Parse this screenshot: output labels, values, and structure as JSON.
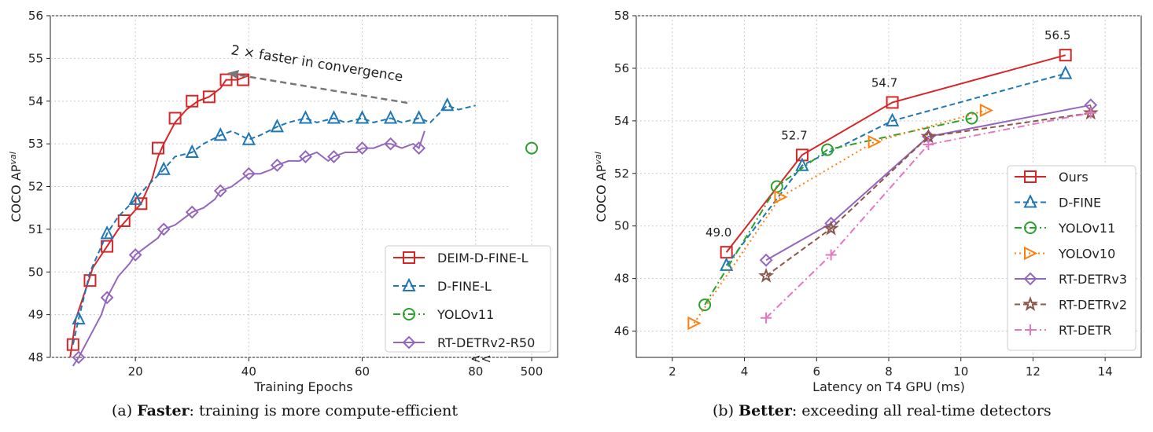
{
  "chart_data": [
    {
      "type": "line",
      "xlabel": "Training Epochs",
      "ylabel": "COCO AP",
      "ylabel_sup": "val",
      "ylim": [
        48,
        56
      ],
      "xlim": [
        5,
        86
      ],
      "yticks": [
        48,
        49,
        50,
        51,
        52,
        53,
        54,
        55,
        56
      ],
      "xticks": [
        20,
        40,
        60,
        80
      ],
      "extra_xtick": {
        "label": "500",
        "y": 52.9
      },
      "break_marker": "<<",
      "annotation": "2 ×  faster in convergence",
      "legend_position": "lower-right",
      "series": [
        {
          "name": "DEIM-D-FINE-L",
          "color": "#d62728",
          "marker": "square",
          "dash": "solid",
          "x": [
            9,
            12,
            15,
            18,
            21,
            24,
            27,
            30,
            33,
            36,
            39
          ],
          "y": [
            48.3,
            49.8,
            50.6,
            51.2,
            51.6,
            52.9,
            53.6,
            54.0,
            54.1,
            54.5,
            54.5
          ],
          "line_x": [
            8.5,
            9.5,
            11,
            12.5,
            14,
            15.5,
            17,
            19,
            21,
            23,
            24,
            25,
            27,
            29,
            31,
            33,
            35,
            36,
            38,
            40
          ],
          "line_y": [
            48.0,
            48.9,
            49.5,
            50.1,
            50.4,
            50.7,
            51.0,
            51.3,
            51.6,
            52.2,
            52.7,
            53.0,
            53.5,
            53.8,
            54.0,
            54.1,
            54.3,
            54.5,
            54.5,
            54.6
          ]
        },
        {
          "name": "D-FINE-L",
          "color": "#1f77b4",
          "marker": "triangle",
          "dash": "dashed",
          "x": [
            10,
            15,
            20,
            25,
            30,
            35,
            40,
            45,
            50,
            55,
            60,
            65,
            70,
            75
          ],
          "y": [
            48.9,
            50.9,
            51.7,
            52.4,
            52.8,
            53.2,
            53.1,
            53.4,
            53.6,
            53.6,
            53.6,
            53.6,
            53.6,
            53.9
          ],
          "line_x": [
            9,
            10,
            12,
            15,
            17,
            20,
            22,
            25,
            27,
            30,
            32,
            35,
            37,
            40,
            42,
            45,
            47,
            50,
            52,
            55,
            57,
            60,
            62,
            65,
            67,
            70,
            72,
            75,
            77,
            80
          ],
          "line_y": [
            48.3,
            48.9,
            50.0,
            50.9,
            51.3,
            51.7,
            52.0,
            52.4,
            52.7,
            52.8,
            53.0,
            53.2,
            53.3,
            53.1,
            53.2,
            53.4,
            53.5,
            53.6,
            53.5,
            53.6,
            53.5,
            53.6,
            53.5,
            53.6,
            53.5,
            53.6,
            53.5,
            53.9,
            53.8,
            53.9
          ]
        },
        {
          "name": "YOLOv11",
          "color": "#2ca02c",
          "marker": "circle",
          "dash": "dashdot",
          "x": [],
          "y": [],
          "line_x": [],
          "line_y": []
        },
        {
          "name": "RT-DETRv2-R50",
          "color": "#9467bd",
          "marker": "diamond",
          "dash": "solid",
          "x": [
            10,
            15,
            20,
            25,
            30,
            35,
            40,
            45,
            50,
            55,
            60,
            65,
            70
          ],
          "y": [
            48.0,
            49.4,
            50.4,
            51.0,
            51.4,
            51.9,
            52.3,
            52.5,
            52.7,
            52.7,
            52.9,
            53.0,
            52.9
          ],
          "line_x": [
            9,
            10,
            12,
            14,
            15,
            17,
            19,
            20,
            22,
            24,
            25,
            27,
            29,
            30,
            32,
            34,
            35,
            37,
            39,
            40,
            42,
            44,
            45,
            47,
            49,
            50,
            52,
            54,
            55,
            57,
            59,
            60,
            62,
            64,
            65,
            67,
            69,
            70,
            71
          ],
          "line_y": [
            47.8,
            48.0,
            48.5,
            49.0,
            49.4,
            49.9,
            50.2,
            50.4,
            50.6,
            50.8,
            51.0,
            51.1,
            51.3,
            51.4,
            51.5,
            51.7,
            51.9,
            52.0,
            52.2,
            52.3,
            52.3,
            52.4,
            52.5,
            52.6,
            52.6,
            52.7,
            52.8,
            52.6,
            52.7,
            52.8,
            52.8,
            52.9,
            52.9,
            53.0,
            53.0,
            52.9,
            53.0,
            52.9,
            53.3
          ]
        }
      ]
    },
    {
      "type": "line",
      "xlabel": "Latency on T4 GPU (ms)",
      "ylabel": "COCO AP",
      "ylabel_sup": "val",
      "xlim": [
        1,
        15
      ],
      "ylim": [
        45,
        58
      ],
      "xticks": [
        2,
        4,
        6,
        8,
        10,
        12,
        14
      ],
      "yticks": [
        46,
        48,
        50,
        52,
        54,
        56,
        58
      ],
      "legend_position": "lower-right",
      "point_labels": [
        {
          "x": 3.5,
          "y": 49.0,
          "text": "49.0"
        },
        {
          "x": 5.6,
          "y": 52.7,
          "text": "52.7"
        },
        {
          "x": 8.1,
          "y": 54.7,
          "text": "54.7"
        },
        {
          "x": 12.9,
          "y": 56.5,
          "text": "56.5"
        }
      ],
      "series": [
        {
          "name": "Ours",
          "color": "#d62728",
          "marker": "square",
          "dash": "solid",
          "x": [
            3.5,
            5.6,
            8.1,
            12.9
          ],
          "y": [
            49.0,
            52.7,
            54.7,
            56.5
          ]
        },
        {
          "name": "D-FINE",
          "color": "#1f77b4",
          "marker": "triangle",
          "dash": "dashed",
          "x": [
            3.5,
            5.6,
            8.1,
            12.9
          ],
          "y": [
            48.5,
            52.3,
            54.0,
            55.8
          ]
        },
        {
          "name": "YOLOv11",
          "color": "#2ca02c",
          "marker": "circle",
          "dash": "dashdot",
          "x": [
            2.9,
            4.9,
            6.3,
            10.3
          ],
          "y": [
            47.0,
            51.5,
            52.9,
            54.1
          ]
        },
        {
          "name": "YOLOv10",
          "color": "#ff7f0e",
          "marker": "triangle-right",
          "dash": "dotted",
          "x": [
            2.6,
            5.0,
            7.6,
            10.7
          ],
          "y": [
            46.3,
            51.1,
            53.2,
            54.4
          ]
        },
        {
          "name": "RT-DETRv3",
          "color": "#9467bd",
          "marker": "diamond",
          "dash": "solid",
          "x": [
            4.6,
            6.4,
            9.1,
            13.6
          ],
          "y": [
            48.7,
            50.1,
            53.4,
            54.6
          ]
        },
        {
          "name": "RT-DETRv2",
          "color": "#8c564b",
          "marker": "star",
          "dash": "dashed",
          "x": [
            4.6,
            6.4,
            9.1,
            13.6
          ],
          "y": [
            48.1,
            49.9,
            53.4,
            54.3
          ]
        },
        {
          "name": "RT-DETR",
          "color": "#e377c2",
          "marker": "plus",
          "dash": "dashdot",
          "x": [
            4.6,
            6.4,
            9.1,
            13.6
          ],
          "y": [
            46.5,
            48.9,
            53.1,
            54.3
          ]
        }
      ]
    }
  ],
  "yolo_point_left": {
    "x_label": "500",
    "y": 52.9
  },
  "captions": {
    "left_prefix": "(a) ",
    "left_bold": "Faster",
    "left_rest": ": training is more compute-efficient",
    "right_prefix": "(b) ",
    "right_bold": "Better",
    "right_rest": ": exceeding all real-time detectors"
  }
}
